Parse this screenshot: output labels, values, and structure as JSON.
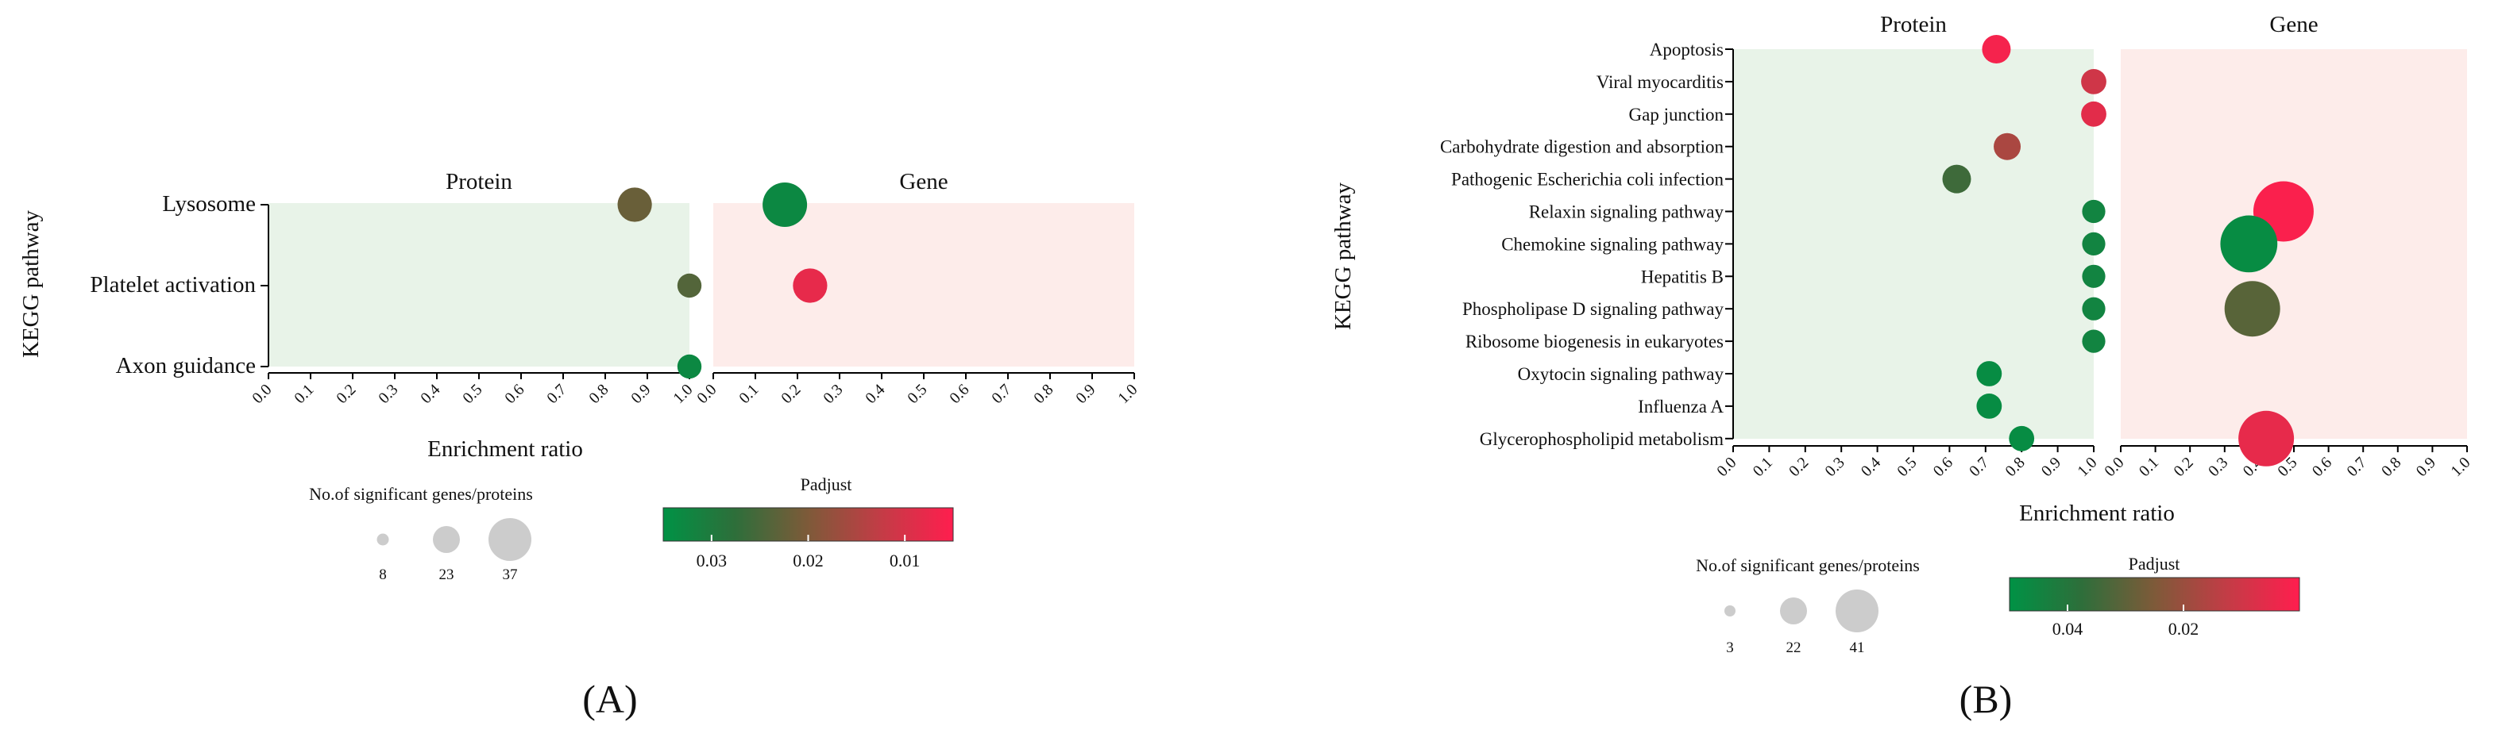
{
  "figure_labels": [
    "(A)",
    "(B)"
  ],
  "colors": {
    "protein_panel_bg": "#e8f3e8",
    "gene_panel_bg": "#fdecea",
    "axis": "#000000",
    "size_legend_bubble": "#cccccc",
    "gradient": [
      "#009245",
      "#2e6e3a",
      "#7e5a39",
      "#c33c46",
      "#ff1e4e"
    ]
  },
  "chart_data": [
    {
      "type": "scatter",
      "label": "(A)",
      "ylabel": "KEGG pathway",
      "xlabel": "Enrichment ratio",
      "xlim": [
        0,
        1
      ],
      "xticks": [
        "0.0",
        "0.1",
        "0.2",
        "0.3",
        "0.4",
        "0.5",
        "0.6",
        "0.7",
        "0.8",
        "0.9",
        "1.0"
      ],
      "categories": [
        "Lysosome",
        "Platelet activation",
        "Axon guidance"
      ],
      "panels": [
        {
          "name": "Protein",
          "points": [
            {
              "pathway": "Lysosome",
              "x": 0.87,
              "count": 20,
              "padjust": 0.022
            },
            {
              "pathway": "Platelet activation",
              "x": 1.0,
              "count": 8,
              "padjust": 0.024
            },
            {
              "pathway": "Axon guidance",
              "x": 1.0,
              "count": 8,
              "padjust": 0.033
            }
          ]
        },
        {
          "name": "Gene",
          "points": [
            {
              "pathway": "Lysosome",
              "x": 0.17,
              "count": 37,
              "padjust": 0.033
            },
            {
              "pathway": "Platelet activation",
              "x": 0.23,
              "count": 20,
              "padjust": 0.008
            }
          ]
        }
      ],
      "size_legend": {
        "title": "No.of significant genes/proteins",
        "values": [
          8,
          23,
          37
        ]
      },
      "color_legend": {
        "title": "Padjust",
        "domain": [
          0.035,
          0.005
        ],
        "ticks": [
          {
            "value": 0.03,
            "label": "0.03"
          },
          {
            "value": 0.02,
            "label": "0.02"
          },
          {
            "value": 0.01,
            "label": "0.01"
          }
        ]
      }
    },
    {
      "type": "scatter",
      "label": "(B)",
      "ylabel": "KEGG pathway",
      "xlabel": "Enrichment ratio",
      "xlim": [
        0,
        1
      ],
      "xticks": [
        "0.0",
        "0.1",
        "0.2",
        "0.3",
        "0.4",
        "0.5",
        "0.6",
        "0.7",
        "0.8",
        "0.9",
        "1.0"
      ],
      "categories": [
        "Apoptosis",
        "Viral myocarditis",
        "Gap junction",
        "Carbohydrate digestion and absorption",
        "Pathogenic Escherichia coli infection",
        "Relaxin signaling pathway",
        "Chemokine signaling pathway",
        "Hepatitis B",
        "Phospholipase D signaling pathway",
        "Ribosome biogenesis in eukaryotes",
        "Oxytocin signaling pathway",
        "Influenza A",
        "Glycerophospholipid metabolism"
      ],
      "panels": [
        {
          "name": "Protein",
          "points": [
            {
              "pathway": "Apoptosis",
              "x": 0.73,
              "count": 7,
              "padjust": 0.002
            },
            {
              "pathway": "Viral myocarditis",
              "x": 1.0,
              "count": 5,
              "padjust": 0.01
            },
            {
              "pathway": "Gap junction",
              "x": 1.0,
              "count": 5,
              "padjust": 0.006
            },
            {
              "pathway": "Carbohydrate digestion and absorption",
              "x": 0.76,
              "count": 6,
              "padjust": 0.017
            },
            {
              "pathway": "Pathogenic Escherichia coli infection",
              "x": 0.62,
              "count": 7,
              "padjust": 0.035
            },
            {
              "pathway": "Relaxin signaling pathway",
              "x": 1.0,
              "count": 4,
              "padjust": 0.045
            },
            {
              "pathway": "Chemokine signaling pathway",
              "x": 1.0,
              "count": 4,
              "padjust": 0.045
            },
            {
              "pathway": "Hepatitis B",
              "x": 1.0,
              "count": 4,
              "padjust": 0.045
            },
            {
              "pathway": "Phospholipase D signaling pathway",
              "x": 1.0,
              "count": 4,
              "padjust": 0.045
            },
            {
              "pathway": "Ribosome biogenesis in eukaryotes",
              "x": 1.0,
              "count": 4,
              "padjust": 0.045
            },
            {
              "pathway": "Oxytocin signaling pathway",
              "x": 0.71,
              "count": 5,
              "padjust": 0.048
            },
            {
              "pathway": "Influenza A",
              "x": 0.71,
              "count": 5,
              "padjust": 0.048
            },
            {
              "pathway": "Glycerophospholipid metabolism",
              "x": 0.8,
              "count": 5,
              "padjust": 0.048
            }
          ]
        },
        {
          "name": "Gene",
          "points": [
            {
              "pathway": "Relaxin signaling pathway",
              "x": 0.47,
              "count": 41,
              "padjust": 0.001
            },
            {
              "pathway": "Chemokine signaling pathway",
              "x": 0.37,
              "count": 36,
              "padjust": 0.048
            },
            {
              "pathway": "Phospholipase D signaling pathway",
              "x": 0.38,
              "count": 34,
              "padjust": 0.031
            },
            {
              "pathway": "Glycerophospholipid metabolism",
              "x": 0.42,
              "count": 34,
              "padjust": 0.005
            }
          ]
        }
      ],
      "size_legend": {
        "title": "No.of significant genes/proteins",
        "values": [
          3,
          22,
          41
        ]
      },
      "color_legend": {
        "title": "Padjust",
        "domain": [
          0.05,
          0.0
        ],
        "ticks": [
          {
            "value": 0.04,
            "label": "0.04"
          },
          {
            "value": 0.02,
            "label": "0.02"
          }
        ]
      }
    }
  ]
}
